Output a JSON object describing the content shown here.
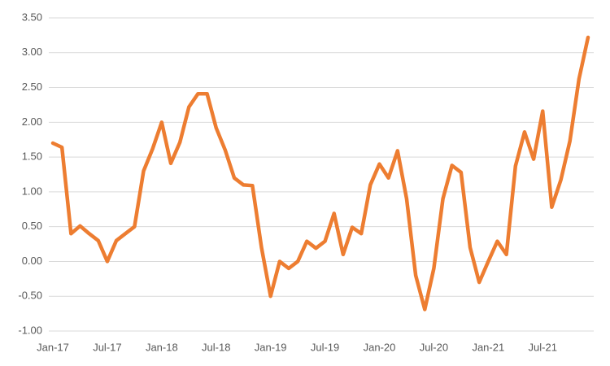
{
  "chart_data": {
    "type": "line",
    "categories": [
      "Jan-17",
      null,
      null,
      null,
      null,
      null,
      "Jul-17",
      null,
      null,
      null,
      null,
      null,
      "Jan-18",
      null,
      null,
      null,
      null,
      null,
      "Jul-18",
      null,
      null,
      null,
      null,
      null,
      "Jan-19",
      null,
      null,
      null,
      null,
      null,
      "Jul-19",
      null,
      null,
      null,
      null,
      null,
      "Jan-20",
      null,
      null,
      null,
      null,
      null,
      "Jul-20",
      null,
      null,
      null,
      null,
      null,
      "Jan-21",
      null,
      null,
      null,
      null,
      null,
      "Jul-21",
      null,
      null,
      null,
      null,
      null
    ],
    "series": [
      {
        "color": "#ed7d31",
        "values": [
          1.7,
          1.64,
          0.4,
          0.51,
          0.4,
          0.3,
          0.0,
          0.3,
          0.4,
          0.5,
          1.3,
          1.62,
          2.0,
          1.41,
          1.71,
          2.22,
          2.41,
          2.41,
          1.92,
          1.6,
          1.2,
          1.1,
          1.09,
          0.2,
          -0.5,
          0.0,
          -0.1,
          0.0,
          0.29,
          0.19,
          0.29,
          0.69,
          0.1,
          0.49,
          0.4,
          1.1,
          1.4,
          1.2,
          1.59,
          0.9,
          -0.2,
          -0.69,
          -0.1,
          0.9,
          1.38,
          1.28,
          0.2,
          -0.3,
          0.0,
          0.29,
          0.1,
          1.37,
          1.86,
          1.47,
          2.16,
          0.78,
          1.17,
          1.73,
          2.62,
          3.22
        ]
      }
    ],
    "ylim": [
      -1,
      3.5
    ],
    "yticks": [
      {
        "value": -1,
        "label": "-1.00"
      },
      {
        "value": -0.5,
        "label": "-0.50"
      },
      {
        "value": 0,
        "label": "0.00"
      },
      {
        "value": 0.5,
        "label": "0.50"
      },
      {
        "value": 1,
        "label": "1.00"
      },
      {
        "value": 1.5,
        "label": "1.50"
      },
      {
        "value": 2,
        "label": "2.00"
      },
      {
        "value": 2.5,
        "label": "2.50"
      },
      {
        "value": 3,
        "label": "3.00"
      },
      {
        "value": 3.5,
        "label": "3.50"
      }
    ],
    "grid": true
  }
}
